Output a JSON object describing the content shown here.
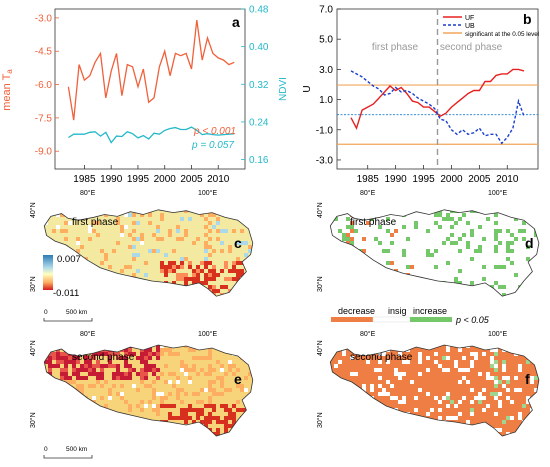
{
  "chart_data": [
    {
      "panel": "a",
      "type": "line",
      "ylabel_left": "mean T",
      "ylabel_left_sub": "a",
      "ylabel_right": "NDVI",
      "x_ticks": [
        "1985",
        "1990",
        "1995",
        "2000",
        "2005",
        "2010"
      ],
      "y_left_ticks": [
        "-3.0",
        "-4.5",
        "-6.0",
        "-7.5",
        "-9.0"
      ],
      "y_right_ticks": [
        "0.48",
        "0.40",
        "0.32",
        "0.24",
        "0.16"
      ],
      "ylim_left": [
        -9.8,
        -2.6
      ],
      "ylim_right": [
        0.14,
        0.48
      ],
      "x": [
        1982,
        1983,
        1984,
        1985,
        1986,
        1987,
        1988,
        1989,
        1990,
        1991,
        1992,
        1993,
        1994,
        1995,
        1996,
        1997,
        1998,
        1999,
        2000,
        2001,
        2002,
        2003,
        2004,
        2005,
        2006,
        2007,
        2008,
        2009,
        2010,
        2011,
        2012,
        2013
      ],
      "series": [
        {
          "axis": "left",
          "color": "#f0603a",
          "values": [
            -6.1,
            -7.6,
            -5.1,
            -5.8,
            -5.6,
            -5.0,
            -4.6,
            -6.6,
            -5.4,
            -4.6,
            -6.5,
            -5.1,
            -5.2,
            -6.1,
            -5.3,
            -6.8,
            -6.6,
            -5.2,
            -4.5,
            -5.6,
            -4.6,
            -4.7,
            -4.6,
            -5.3,
            -3.1,
            -4.9,
            -3.9,
            -4.6,
            -4.8,
            -4.9,
            -5.1,
            -5.0
          ]
        },
        {
          "axis": "right",
          "color": "#24b8c9",
          "values": [
            0.207,
            0.214,
            0.214,
            0.214,
            0.218,
            0.219,
            0.21,
            0.218,
            0.196,
            0.21,
            0.209,
            0.219,
            0.215,
            0.206,
            0.211,
            0.204,
            0.216,
            0.214,
            0.222,
            0.226,
            0.228,
            0.224,
            0.224,
            0.229,
            0.222,
            0.213,
            0.215,
            0.213,
            0.212,
            0.213,
            0.214,
            0.215
          ]
        }
      ],
      "annotations": [
        {
          "text": "p < 0.001",
          "color": "#f0603a"
        },
        {
          "text": "p = 0.057",
          "color": "#24b8c9"
        }
      ],
      "label": "a"
    },
    {
      "panel": "b",
      "type": "line",
      "ylabel": "U",
      "x_ticks": [
        "1985",
        "1990",
        "1995",
        "2000",
        "2005",
        "2010"
      ],
      "y_ticks": [
        "7.0",
        "5.0",
        "3.0",
        "1.0",
        "-1.0",
        "-3.0"
      ],
      "ylim": [
        -3.0,
        7.0
      ],
      "x": [
        1982,
        1983,
        1984,
        1985,
        1986,
        1987,
        1988,
        1989,
        1990,
        1991,
        1992,
        1993,
        1994,
        1995,
        1996,
        1997,
        1998,
        1999,
        2000,
        2001,
        2002,
        2003,
        2004,
        2005,
        2006,
        2007,
        2008,
        2009,
        2010,
        2011,
        2012,
        2013
      ],
      "series": [
        {
          "name": "UF",
          "color": "#e82020",
          "style": "solid",
          "values": [
            -0.2,
            -0.9,
            0.3,
            0.5,
            0.7,
            1.1,
            1.5,
            1.9,
            1.6,
            1.8,
            1.4,
            0.9,
            0.8,
            0.5,
            0.5,
            0.2,
            -0.1,
            0.1,
            0.5,
            0.8,
            1.1,
            1.4,
            1.6,
            1.6,
            2.2,
            2.2,
            2.6,
            2.7,
            2.7,
            3.0,
            3.0,
            2.9
          ]
        },
        {
          "name": "UB",
          "color": "#1a3fcf",
          "style": "dashed",
          "values": [
            2.9,
            2.7,
            2.5,
            2.2,
            1.9,
            1.7,
            1.3,
            1.4,
            1.8,
            1.5,
            1.6,
            1.4,
            1.1,
            0.9,
            0.7,
            0.4,
            -0.3,
            -0.4,
            -1.0,
            -1.3,
            -1.0,
            -1.3,
            -1.2,
            -0.9,
            -1.4,
            -1.3,
            -1.3,
            -1.9,
            -1.5,
            -0.9,
            0.9,
            -0.1
          ]
        }
      ],
      "significance_line": {
        "label": "significant at the 0.05 level",
        "color": "#f2a65a",
        "values": [
          1.96,
          -1.96
        ]
      },
      "zero_line_color": "#1a7fd1",
      "phase_split_year": 1997.5,
      "phase_labels": [
        "first phase",
        "second phase"
      ],
      "label": "b"
    }
  ],
  "maps": [
    {
      "panel": "c",
      "title": "first phase",
      "label": "c",
      "legend_max": "0.007",
      "legend_min": "-0.011",
      "scale": "500 km",
      "lon_ticks": [
        "80°E",
        "100°E"
      ],
      "lat_ticks": [
        "40°N",
        "30°N"
      ]
    },
    {
      "panel": "d",
      "title": "first phase",
      "label": "d",
      "lon_ticks": [
        "80°E",
        "100°E"
      ],
      "lat_ticks": [
        "40°N",
        "30°N"
      ],
      "legend": {
        "items": [
          "decrease",
          "insig",
          "increase"
        ],
        "colors": [
          "#ef7e45",
          "#ffffff",
          "#75c86a"
        ],
        "note": "p < 0.05"
      }
    },
    {
      "panel": "e",
      "title": "second phase",
      "label": "e",
      "scale": "500 km",
      "lon_ticks": [
        "80°E",
        "100°E"
      ],
      "lat_ticks": [
        "40°N",
        "30°N"
      ]
    },
    {
      "panel": "f",
      "title": "second phase",
      "label": "f",
      "lon_ticks": [
        "80°E",
        "100°E"
      ],
      "lat_ticks": [
        "40°N",
        "30°N"
      ]
    }
  ],
  "colors": {
    "map_orange": "#ef7e45",
    "map_green": "#6cc064",
    "map_yellow": "#f6e58d",
    "map_red": "#cf1f2e"
  }
}
